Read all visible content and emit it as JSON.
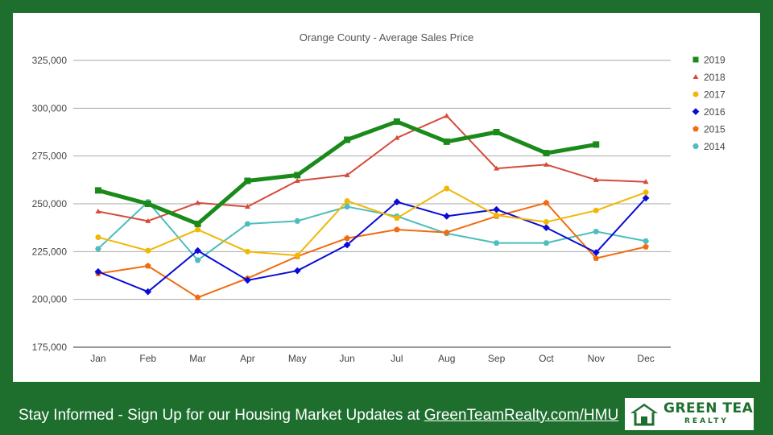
{
  "chart_data": {
    "type": "line",
    "title": "Orange County - Average Sales Price",
    "xlabel": "",
    "ylabel": "",
    "categories": [
      "Jan",
      "Feb",
      "Mar",
      "Apr",
      "May",
      "Jun",
      "Jul",
      "Aug",
      "Sep",
      "Oct",
      "Nov",
      "Dec"
    ],
    "ylim": [
      175000,
      325000
    ],
    "yticks": [
      175000,
      200000,
      225000,
      250000,
      275000,
      300000,
      325000
    ],
    "ytick_labels": [
      "175,000",
      "200,000",
      "225,000",
      "250,000",
      "275,000",
      "300,000",
      "325,000"
    ],
    "grid": true,
    "legend_position": "right",
    "series": [
      {
        "name": "2019",
        "color": "#1a8a1a",
        "marker": "square",
        "emphasis": true,
        "values": [
          257000,
          250000,
          239500,
          262000,
          265000,
          283500,
          293000,
          282500,
          287500,
          276500,
          281000,
          null
        ]
      },
      {
        "name": "2018",
        "color": "#d64a3a",
        "marker": "triangle",
        "values": [
          246000,
          241000,
          250500,
          248500,
          262000,
          265000,
          284500,
          296000,
          268500,
          270500,
          262500,
          261500
        ]
      },
      {
        "name": "2017",
        "color": "#f2b705",
        "marker": "circle",
        "values": [
          232500,
          225500,
          236500,
          225000,
          223000,
          251500,
          242500,
          258000,
          244000,
          240500,
          246500,
          256000
        ]
      },
      {
        "name": "2016",
        "color": "#0b0bd6",
        "marker": "diamond",
        "values": [
          214500,
          204000,
          225500,
          210000,
          215000,
          228500,
          251000,
          243500,
          247000,
          237500,
          224500,
          253000
        ]
      },
      {
        "name": "2015",
        "color": "#f26b0f",
        "marker": "pentagon",
        "values": [
          213500,
          217500,
          201000,
          211000,
          222500,
          232000,
          236500,
          235000,
          243500,
          250500,
          221500,
          227500
        ]
      },
      {
        "name": "2014",
        "color": "#4dbdbd",
        "marker": "hexagon",
        "values": [
          226500,
          251000,
          220500,
          239500,
          241000,
          248500,
          243500,
          234500,
          229500,
          229500,
          235500,
          230500
        ]
      }
    ]
  },
  "footer": {
    "text": "Stay Informed - Sign Up for our Housing Market Updates at ",
    "link_text": "GreenTeamRealty.com/HMU"
  },
  "logo": {
    "line1": "GREEN TEAM",
    "line2": "REALTY"
  },
  "colors": {
    "background": "#1e6f2e",
    "panel": "#ffffff"
  }
}
